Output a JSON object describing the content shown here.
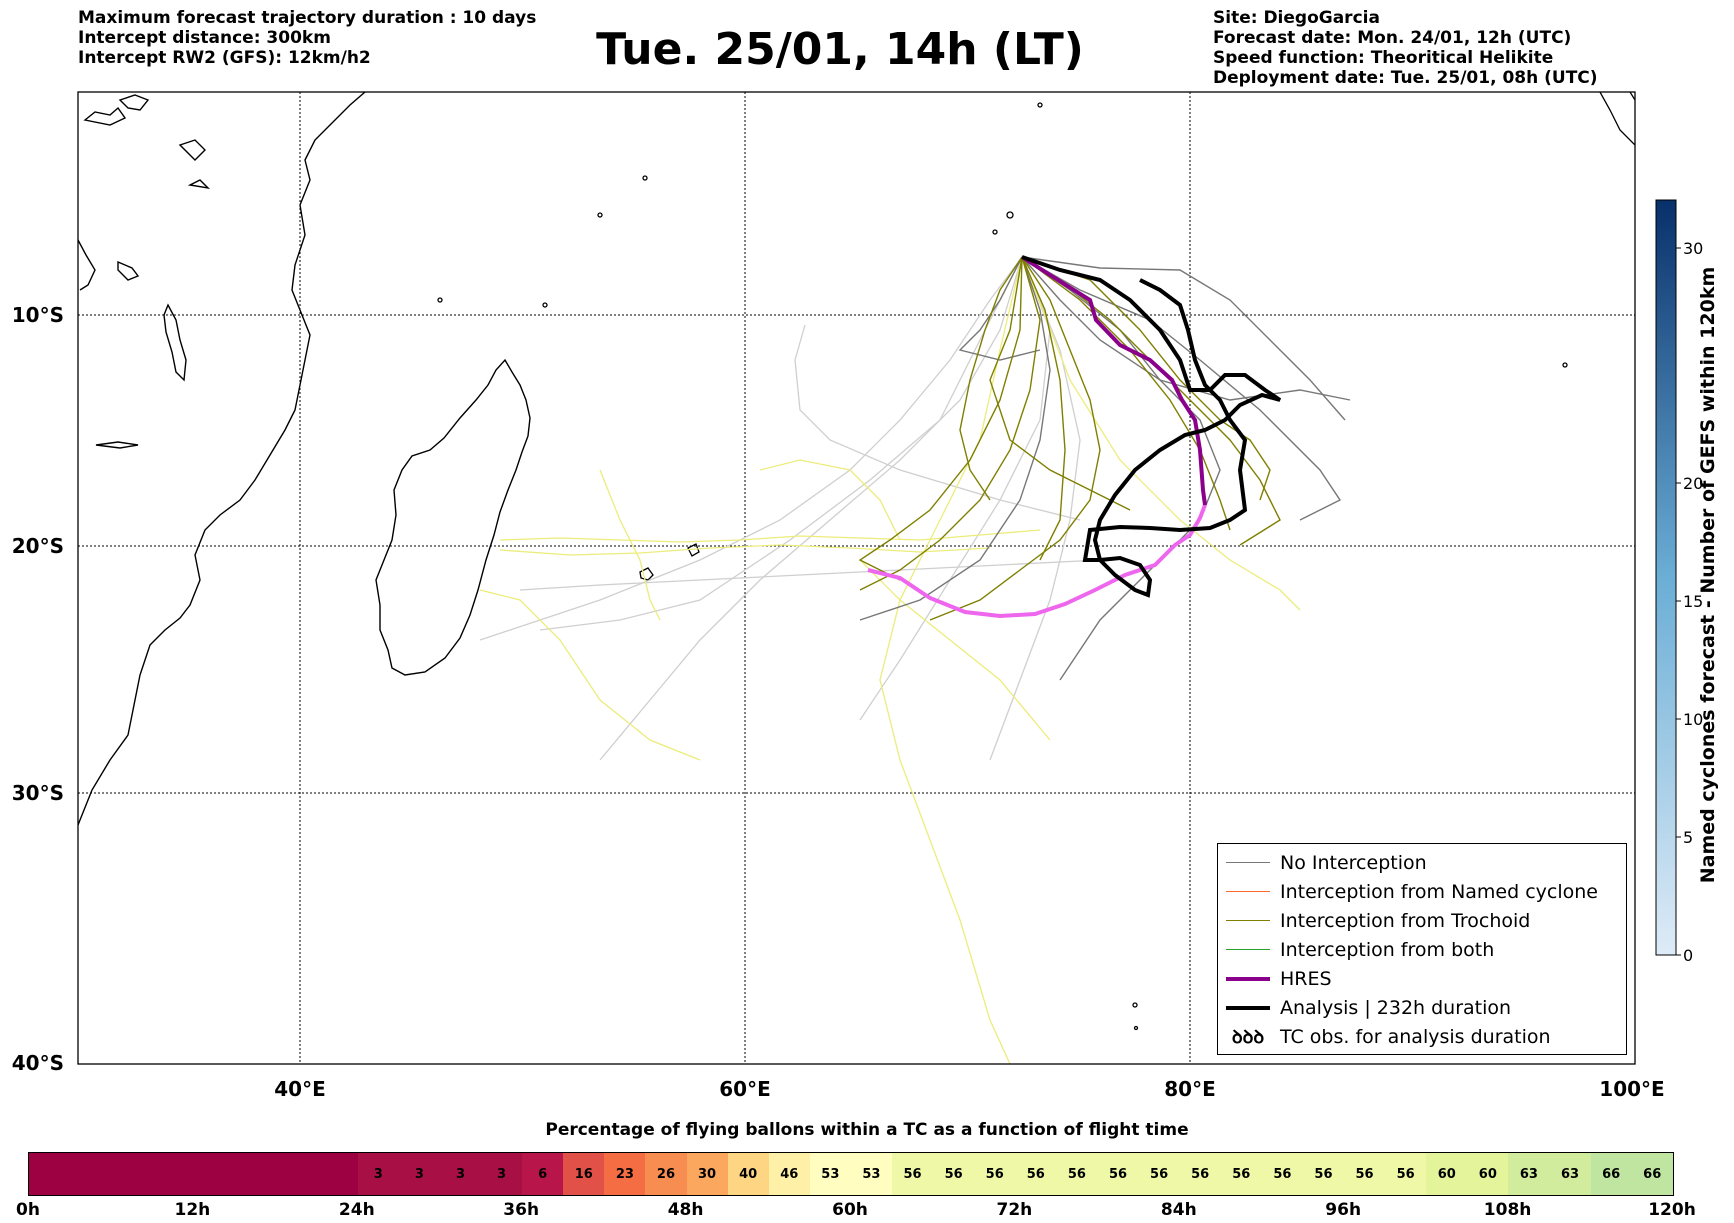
{
  "header_left": {
    "line1": "Maximum forecast trajectory duration : 10 days",
    "line2": "Intercept distance: 300km",
    "line3": "Intercept RW2 (GFS):  12km/h2"
  },
  "title": "Tue. 25/01, 14h (LT)",
  "header_right": {
    "site": "Site: DiegoGarcia",
    "forecast_date": "Forecast date: Mon. 24/01, 12h (UTC)",
    "speed_function": "Speed function: Theoritical Helikite",
    "deployment_date": "Deployment date: Tue. 25/01, 08h (UTC)"
  },
  "map": {
    "lon_labels": [
      "40°E",
      "60°E",
      "80°E",
      "100°E"
    ],
    "lat_labels": [
      "10°S",
      "20°S",
      "30°S",
      "40°S"
    ],
    "colors": {
      "no_interception": "#777777",
      "named_cyclone": "#ff6a2a",
      "trochoid": "#7f7f00",
      "both": "#2ca02c",
      "hres": "#8b008b",
      "analysis": "#000000",
      "far_light": "#cfcfcf",
      "far_yellow": "#ecec7c",
      "hres_late": "#ee66ee"
    }
  },
  "legend": {
    "items": [
      {
        "label": "No Interception",
        "icon": "line-icon"
      },
      {
        "label": "Interception from Named cyclone",
        "icon": "line-icon"
      },
      {
        "label": "Interception from Trochoid",
        "icon": "line-icon"
      },
      {
        "label": "Interception from both",
        "icon": "line-icon"
      },
      {
        "label": "HRES",
        "icon": "line-icon"
      },
      {
        "label": "Analysis | 232h duration",
        "icon": "line-icon"
      },
      {
        "label": "TC obs. for analysis duration",
        "icon": "cyclone-icon",
        "glyph": "ꝺꝺꝺ"
      }
    ]
  },
  "right_colorbar": {
    "label": "Named cyclones forecast - Number of GEFS within 120km",
    "ticks": [
      "0",
      "5",
      "10",
      "15",
      "20",
      "30"
    ]
  },
  "bottom_colorbar": {
    "title": "Percentage of flying ballons within a TC as a function of flight time",
    "ticks": [
      "0h",
      "12h",
      "24h",
      "36h",
      "48h",
      "60h",
      "72h",
      "84h",
      "96h",
      "108h",
      "120h"
    ],
    "values": [
      "",
      "",
      "",
      "",
      "",
      "",
      "",
      "",
      "3",
      "3",
      "3",
      "3",
      "6",
      "16",
      "23",
      "26",
      "30",
      "40",
      "46",
      "53",
      "53",
      "56",
      "56",
      "56",
      "56",
      "56",
      "56",
      "56",
      "56",
      "56",
      "56",
      "56",
      "56",
      "56",
      "60",
      "60",
      "63",
      "63",
      "66",
      "66"
    ],
    "colors": [
      "#9e0142",
      "#9e0142",
      "#9e0142",
      "#9e0142",
      "#9e0142",
      "#9e0142",
      "#9e0142",
      "#9e0142",
      "#a80f44",
      "#a80f44",
      "#a80f44",
      "#a80f44",
      "#b8154a",
      "#e15148",
      "#f46d43",
      "#f88d52",
      "#fca75e",
      "#fed683",
      "#fef0a7",
      "#fffdbf",
      "#fffdbf",
      "#eff8a6",
      "#eff8a6",
      "#eff8a6",
      "#eff8a6",
      "#eff8a6",
      "#eff8a6",
      "#eff8a6",
      "#eff8a6",
      "#eff8a6",
      "#eff8a6",
      "#eff8a6",
      "#eff8a6",
      "#eff8a6",
      "#e4f49a",
      "#e4f49a",
      "#d2ec9d",
      "#d2ec9d",
      "#bfe5a0",
      "#bfe5a0"
    ]
  }
}
